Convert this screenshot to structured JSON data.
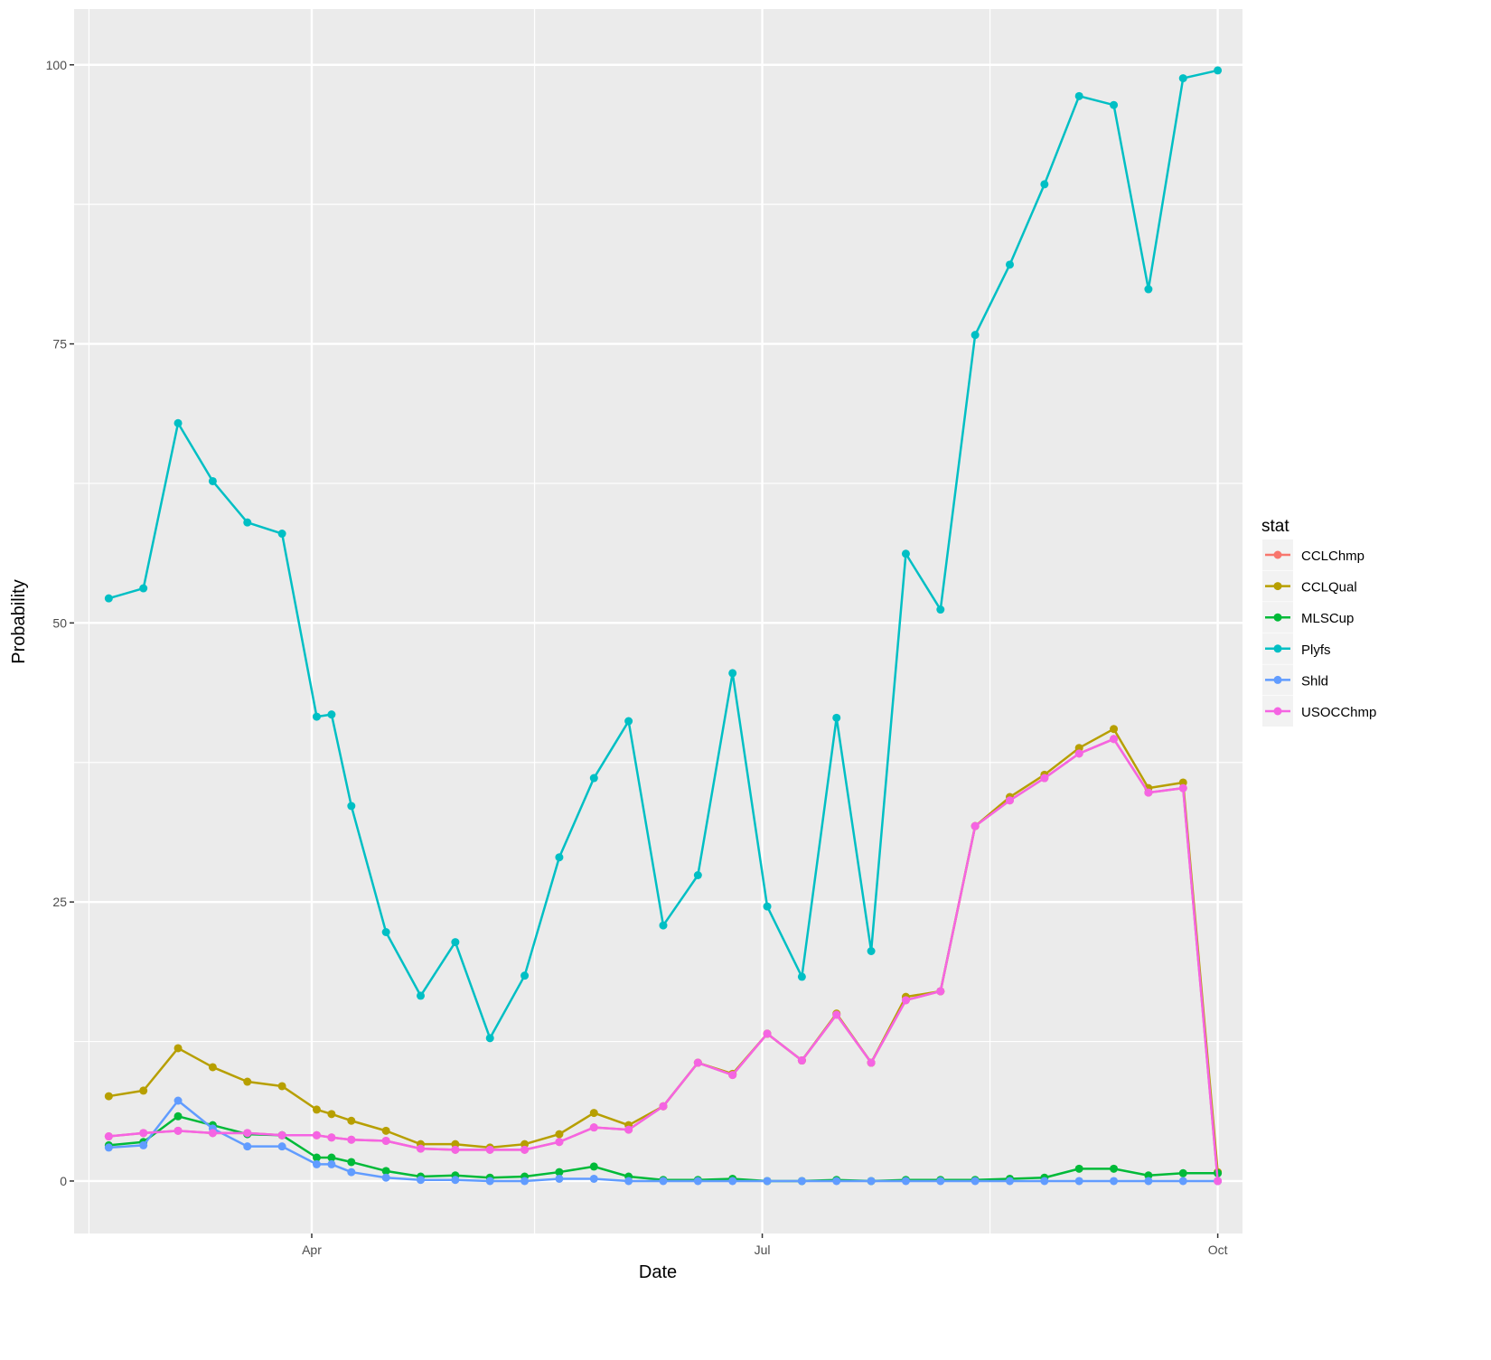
{
  "chart_data": {
    "type": "line",
    "title": "",
    "xlabel": "Date",
    "ylabel": "Probability",
    "ylim": [
      -4.7,
      105
    ],
    "xlim": [
      "2017-02-12",
      "2017-10-06"
    ],
    "yticks": [
      0,
      25,
      50,
      75,
      100
    ],
    "xticks": [
      {
        "date": "2017-04-01",
        "label": "Apr"
      },
      {
        "date": "2017-07-01",
        "label": "Jul"
      },
      {
        "date": "2017-10-01",
        "label": "Oct"
      }
    ],
    "x_minor": [
      "2017-02-15",
      "2017-05-16",
      "2017-08-16"
    ],
    "grid": true,
    "legend": {
      "title": "stat",
      "placement": "right"
    },
    "x": [
      "2017-02-19",
      "2017-02-26",
      "2017-03-05",
      "2017-03-12",
      "2017-03-19",
      "2017-03-26",
      "2017-04-02",
      "2017-04-05",
      "2017-04-09",
      "2017-04-16",
      "2017-04-23",
      "2017-04-30",
      "2017-05-07",
      "2017-05-14",
      "2017-05-21",
      "2017-05-28",
      "2017-06-04",
      "2017-06-11",
      "2017-06-18",
      "2017-06-25",
      "2017-07-02",
      "2017-07-09",
      "2017-07-16",
      "2017-07-23",
      "2017-07-30",
      "2017-08-06",
      "2017-08-13",
      "2017-08-20",
      "2017-08-27",
      "2017-09-03",
      "2017-09-10",
      "2017-09-17",
      "2017-09-24",
      "2017-10-01"
    ],
    "series": [
      {
        "name": "CCLChmp",
        "color": "#F8766D",
        "values": [
          4.0,
          4.3,
          4.5,
          4.3,
          4.3,
          4.1,
          4.1,
          3.9,
          3.7,
          3.6,
          2.9,
          2.8,
          2.8,
          2.8,
          3.5,
          4.8,
          4.6,
          6.7,
          10.6,
          9.5,
          13.2,
          10.8,
          14.9,
          10.6,
          16.2,
          17.0,
          31.8,
          34.1,
          36.1,
          38.3,
          39.6,
          34.8,
          35.2,
          0
        ]
      },
      {
        "name": "CCLQual",
        "color": "#B79F00",
        "values": [
          7.6,
          8.1,
          11.9,
          10.2,
          8.9,
          8.5,
          6.4,
          6.0,
          5.4,
          4.5,
          3.3,
          3.3,
          3.0,
          3.3,
          4.2,
          6.1,
          5.0,
          6.7,
          10.6,
          9.6,
          13.2,
          10.8,
          15.0,
          10.6,
          16.5,
          17.0,
          31.8,
          34.4,
          36.4,
          38.8,
          40.5,
          35.2,
          35.7,
          0.8
        ]
      },
      {
        "name": "MLSCup",
        "color": "#00BA38",
        "values": [
          3.2,
          3.5,
          5.8,
          5.0,
          4.2,
          4.1,
          2.1,
          2.1,
          1.7,
          0.9,
          0.4,
          0.5,
          0.3,
          0.4,
          0.8,
          1.3,
          0.4,
          0.1,
          0.1,
          0.2,
          0,
          0,
          0.1,
          0,
          0.1,
          0.1,
          0.1,
          0.2,
          0.3,
          1.1,
          1.1,
          0.5,
          0.7,
          0.7
        ]
      },
      {
        "name": "Plyfs",
        "color": "#00BFC4",
        "values": [
          52.2,
          53.1,
          67.9,
          62.7,
          59.0,
          58.0,
          41.6,
          41.8,
          33.6,
          22.3,
          16.6,
          21.4,
          12.8,
          18.4,
          29.0,
          36.1,
          41.2,
          22.9,
          27.4,
          45.5,
          24.6,
          18.3,
          41.5,
          20.6,
          56.2,
          51.2,
          75.8,
          82.1,
          89.3,
          97.2,
          96.4,
          79.9,
          98.8,
          99.5
        ]
      },
      {
        "name": "Shld",
        "color": "#619CFF",
        "values": [
          3.0,
          3.2,
          7.2,
          4.7,
          3.1,
          3.1,
          1.5,
          1.5,
          0.8,
          0.3,
          0.1,
          0.1,
          0,
          0,
          0.2,
          0.2,
          0,
          0,
          0,
          0,
          0,
          0,
          0,
          0,
          0,
          0,
          0,
          0,
          0,
          0,
          0,
          0,
          0,
          0
        ]
      },
      {
        "name": "USOCChmp",
        "color": "#F564E3",
        "values": [
          4.0,
          4.3,
          4.5,
          4.3,
          4.3,
          4.1,
          4.1,
          3.9,
          3.7,
          3.6,
          2.9,
          2.8,
          2.8,
          2.8,
          3.5,
          4.8,
          4.6,
          6.7,
          10.6,
          9.5,
          13.2,
          10.8,
          14.9,
          10.6,
          16.2,
          17.0,
          31.8,
          34.1,
          36.1,
          38.3,
          39.6,
          34.8,
          35.2,
          0
        ]
      }
    ]
  }
}
